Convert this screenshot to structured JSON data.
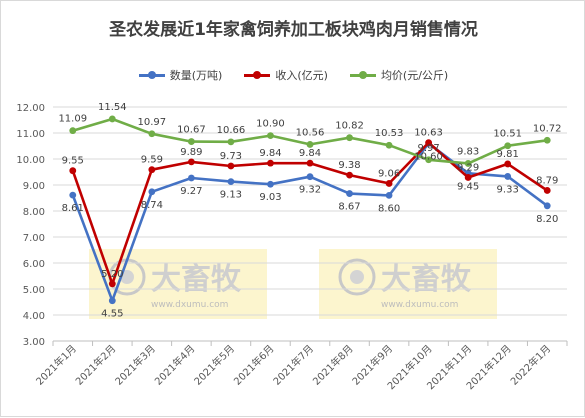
{
  "title": "圣农发展近1年家禽饲养加工板块鸡肉月销售情况",
  "legend": {
    "items": [
      {
        "label": "数量(万吨)",
        "color": "#4472C4"
      },
      {
        "label": "收入(亿元)",
        "color": "#C00000"
      },
      {
        "label": "均价(元/公斤)",
        "color": "#70AD47"
      }
    ]
  },
  "watermark": {
    "brand": "大畜牧",
    "url": "www.dxumu.com"
  },
  "chart_data": {
    "type": "line",
    "title": "圣农发展近1年家禽饲养加工板块鸡肉月销售情况",
    "xlabel": "",
    "ylabel": "",
    "ylim": [
      3.0,
      12.0
    ],
    "yticks": [
      "3.00",
      "4.00",
      "5.00",
      "6.00",
      "7.00",
      "8.00",
      "9.00",
      "10.00",
      "11.00",
      "12.00"
    ],
    "grid": true,
    "legend_position": "top",
    "categories": [
      "2021年1月",
      "2021年2月",
      "2021年3月",
      "2021年4月",
      "2021年5月",
      "2021年6月",
      "2021年7月",
      "2021年8月",
      "2021年9月",
      "2021年10月",
      "2021年11月",
      "2021年12月",
      "2022年1月"
    ],
    "series": [
      {
        "name": "数量(万吨)",
        "color": "#4472C4",
        "values": [
          8.61,
          4.55,
          8.74,
          9.27,
          9.13,
          9.03,
          9.32,
          8.67,
          8.6,
          10.6,
          9.45,
          9.33,
          8.2
        ],
        "labels": [
          "8.61",
          "4.55",
          "8.74",
          "9.27",
          "9.13",
          "9.03",
          "9.32",
          "8.67",
          "8.60",
          "10.60",
          "9.45",
          "9.33",
          "8.20"
        ]
      },
      {
        "name": "收入(亿元)",
        "color": "#C00000",
        "values": [
          9.55,
          5.2,
          9.59,
          9.89,
          9.73,
          9.84,
          9.84,
          9.38,
          9.06,
          10.63,
          9.29,
          9.81,
          8.79
        ],
        "labels": [
          "9.55",
          "5.20",
          "9.59",
          "9.89",
          "9.73",
          "9.84",
          "9.84",
          "9.38",
          "9.06",
          "10.63",
          "9.29",
          "9.81",
          "8.79"
        ]
      },
      {
        "name": "均价(元/公斤)",
        "color": "#70AD47",
        "values": [
          11.09,
          11.54,
          10.97,
          10.67,
          10.66,
          10.9,
          10.56,
          10.82,
          10.53,
          9.97,
          9.83,
          10.51,
          10.72
        ],
        "labels": [
          "11.09",
          "11.54",
          "10.97",
          "10.67",
          "10.66",
          "10.90",
          "10.56",
          "10.82",
          "10.53",
          "9.97",
          "9.83",
          "10.51",
          "10.72"
        ]
      }
    ]
  }
}
